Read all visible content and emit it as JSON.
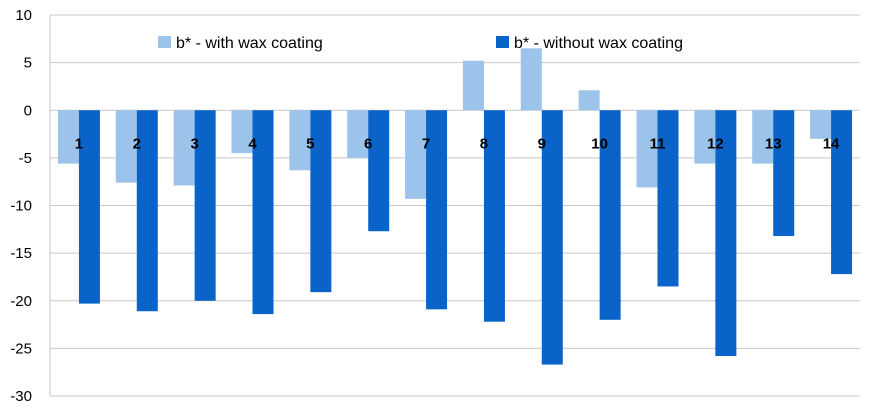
{
  "chart_data": {
    "type": "bar",
    "categories": [
      "1",
      "2",
      "3",
      "4",
      "5",
      "6",
      "7",
      "8",
      "9",
      "10",
      "11",
      "12",
      "13",
      "14"
    ],
    "series": [
      {
        "name": "b* - with wax coating",
        "color": "#9cc3ea",
        "values": [
          -5.6,
          -7.6,
          -7.9,
          -4.5,
          -6.3,
          -5.0,
          -9.3,
          5.2,
          6.5,
          2.1,
          -8.1,
          -5.6,
          -5.6,
          -3.0
        ]
      },
      {
        "name": "b* - without wax coating",
        "color": "#0a63c9",
        "values": [
          -20.3,
          -21.1,
          -20.0,
          -21.4,
          -19.1,
          -12.7,
          -20.9,
          -22.2,
          -26.7,
          -22.0,
          -18.5,
          -25.8,
          -13.2,
          -17.2
        ]
      }
    ],
    "title": "",
    "xlabel": "",
    "ylabel": "",
    "ylim": [
      -30,
      10
    ],
    "yticks": [
      "10",
      "5",
      "0",
      "-5",
      "-10",
      "-15",
      "-20",
      "-25",
      "-30"
    ],
    "grid": true,
    "legend_position": "top"
  }
}
